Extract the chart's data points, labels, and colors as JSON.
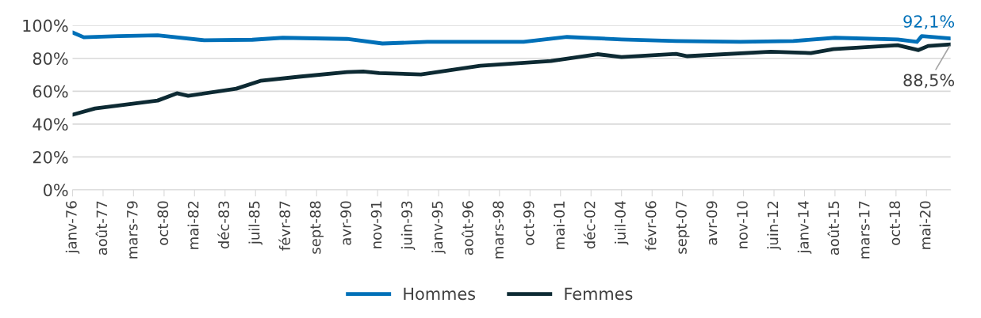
{
  "chart_data": {
    "type": "line",
    "series": [
      {
        "name": "Hommes",
        "color": "#0070b8",
        "x": [
          "1976-01",
          "1976-08",
          "1978-06",
          "1980-06",
          "1982-11",
          "1985-05",
          "1986-12",
          "1990-04",
          "1992-02",
          "1994-06",
          "1996-10",
          "1999-06",
          "2001-09",
          "2004-07",
          "2007-05",
          "2010-09",
          "2013-06",
          "2015-08",
          "2018-11",
          "2019-11",
          "2020-02",
          "2021-08"
        ],
        "values": [
          95.7,
          92.8,
          93.5,
          94,
          91,
          91.3,
          92.5,
          91.8,
          89,
          90,
          90,
          90,
          93,
          91.5,
          90.5,
          90,
          90.5,
          92.5,
          91.5,
          90,
          93.5,
          92.1
        ]
      },
      {
        "name": "Femmes",
        "color": "#0d2a33",
        "x": [
          "1976-01",
          "1977-03",
          "1980-06",
          "1981-06",
          "1982-01",
          "1984-07",
          "1985-10",
          "1987-10",
          "1990-04",
          "1991-02",
          "1991-12",
          "1994-02",
          "1997-03",
          "2000-11",
          "2003-04",
          "2004-07",
          "2007-05",
          "2007-12",
          "2012-04",
          "2014-05",
          "2015-07",
          "2018-11",
          "2019-12",
          "2020-06",
          "2021-08"
        ],
        "values": [
          45.7,
          49.5,
          54.3,
          58.7,
          57.2,
          61.5,
          66.3,
          68.8,
          71.6,
          72,
          71,
          70.2,
          75.5,
          78.4,
          82.5,
          80.8,
          82.7,
          81.3,
          84,
          83.2,
          85.6,
          88,
          85,
          87.5,
          88.5
        ]
      }
    ],
    "xlim": [
      "1976-01",
      "2021-08"
    ],
    "xticks": [
      {
        "value": "1976-01",
        "label": "janv-76"
      },
      {
        "value": "1977-08",
        "label": "août-77"
      },
      {
        "value": "1979-03",
        "label": "mars-79"
      },
      {
        "value": "1980-10",
        "label": "oct-80"
      },
      {
        "value": "1982-05",
        "label": "mai-82"
      },
      {
        "value": "1983-12",
        "label": "déc-83"
      },
      {
        "value": "1985-07",
        "label": "juil-85"
      },
      {
        "value": "1987-02",
        "label": "févr-87"
      },
      {
        "value": "1988-09",
        "label": "sept-88"
      },
      {
        "value": "1990-04",
        "label": "avr-90"
      },
      {
        "value": "1991-11",
        "label": "nov-91"
      },
      {
        "value": "1993-06",
        "label": "juin-93"
      },
      {
        "value": "1995-01",
        "label": "janv-95"
      },
      {
        "value": "1996-08",
        "label": "août-96"
      },
      {
        "value": "1998-03",
        "label": "mars-98"
      },
      {
        "value": "1999-10",
        "label": "oct-99"
      },
      {
        "value": "2001-05",
        "label": "mai-01"
      },
      {
        "value": "2002-12",
        "label": "déc-02"
      },
      {
        "value": "2004-07",
        "label": "juil-04"
      },
      {
        "value": "2006-02",
        "label": "févr-06"
      },
      {
        "value": "2007-09",
        "label": "sept-07"
      },
      {
        "value": "2009-04",
        "label": "avr-09"
      },
      {
        "value": "2010-11",
        "label": "nov-10"
      },
      {
        "value": "2012-06",
        "label": "juin-12"
      },
      {
        "value": "2014-01",
        "label": "janv-14"
      },
      {
        "value": "2015-08",
        "label": "août-15"
      },
      {
        "value": "2017-03",
        "label": "mars-17"
      },
      {
        "value": "2018-10",
        "label": "oct-18"
      },
      {
        "value": "2020-05",
        "label": "mai-20"
      }
    ],
    "ylim": [
      0,
      100
    ],
    "yticks": [
      {
        "value": 0,
        "label": "0%"
      },
      {
        "value": 20,
        "label": "20%"
      },
      {
        "value": 40,
        "label": "40%"
      },
      {
        "value": 60,
        "label": "60%"
      },
      {
        "value": 80,
        "label": "80%"
      },
      {
        "value": 100,
        "label": "100%"
      }
    ],
    "annotations": [
      {
        "text": "92,1%",
        "x": "2021-08",
        "y": 92.1
      },
      {
        "text": "88,5%",
        "x": "2021-08",
        "y": 88.5
      }
    ],
    "grid": "y",
    "legend": "bottom",
    "line_style": "solid",
    "marker": "none"
  }
}
